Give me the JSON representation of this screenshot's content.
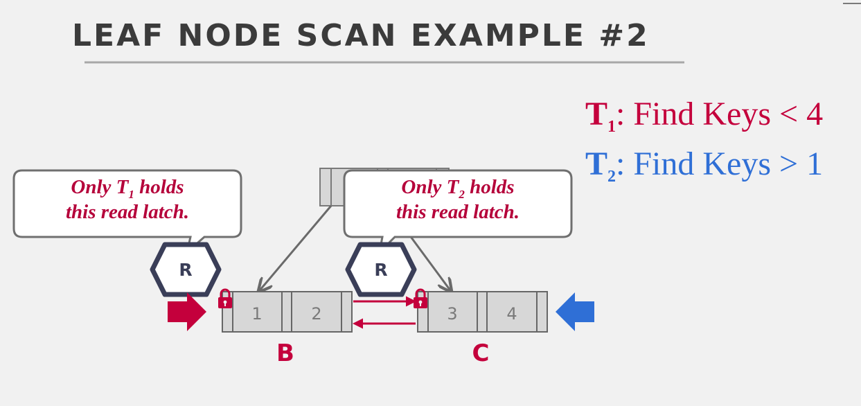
{
  "title": "LEAF NODE SCAN EXAMPLE #2",
  "legend": [
    {
      "prefix": "T",
      "sub": "1",
      "text": ": Find Keys < 4",
      "color": "#c4003c"
    },
    {
      "prefix": "T",
      "sub": "2",
      "text": ": Find Keys > 1",
      "color": "#2f6fd6"
    }
  ],
  "callouts": [
    {
      "line1_pre": "Only T",
      "line1_sub": "1",
      "line1_post": " holds",
      "line2": "this read latch."
    },
    {
      "line1_pre": "Only T",
      "line1_sub": "2",
      "line1_post": " holds",
      "line2": "this read latch."
    }
  ],
  "latches": [
    {
      "mode": "R"
    },
    {
      "mode": "R"
    }
  ],
  "nodes": [
    {
      "label": "B",
      "keys": [
        "1",
        "2"
      ]
    },
    {
      "label": "C",
      "keys": [
        "3",
        "4"
      ]
    }
  ],
  "icons": {
    "t1_arrow": "red-arrow-right-icon",
    "t2_arrow": "blue-arrow-left-icon",
    "lock": "padlock-icon"
  },
  "colors": {
    "t1": "#c4003c",
    "t2": "#2f6fd6",
    "latch": "#3a3e58",
    "node_fill": "#d7d7d7",
    "node_stroke": "#666666"
  }
}
